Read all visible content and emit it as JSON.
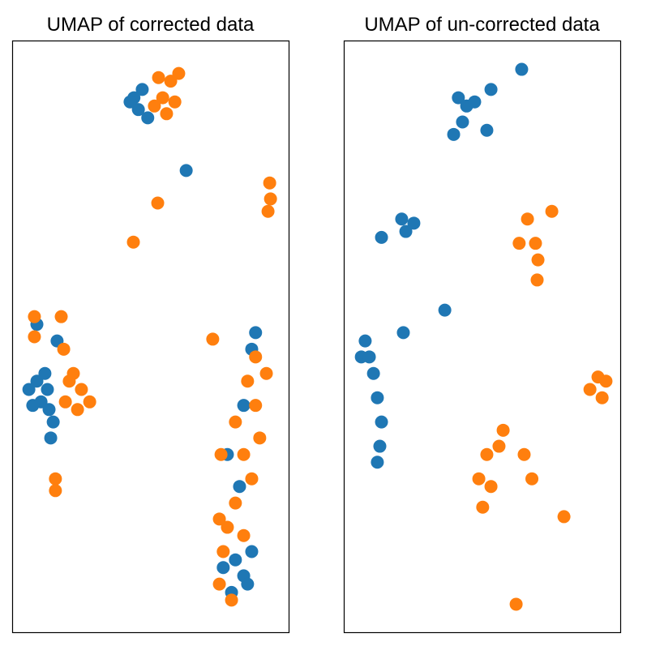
{
  "chart_data": [
    {
      "type": "scatter",
      "title": "UMAP of corrected data",
      "xlim": [
        0,
        100
      ],
      "ylim": [
        0,
        100
      ],
      "series": [
        {
          "color": "#1f77b4",
          "x": [
            43.9,
            46.9,
            45.5,
            48.9,
            42.5,
            62.8,
            5.9,
            8.8,
            10.3,
            7.3,
            12.6,
            13.2,
            11.7,
            14.7,
            13.8,
            8.8,
            16.1,
            80.6,
            83.6,
            79.2,
            86.5,
            85.0,
            76.2,
            82.1,
            83.6,
            86.5,
            77.7,
            87.9
          ],
          "y": [
            90.4,
            91.8,
            88.4,
            87.0,
            89.7,
            78.1,
            41.1,
            42.5,
            39.0,
            38.4,
            41.1,
            37.7,
            43.8,
            35.6,
            32.9,
            52.1,
            49.3,
            12.3,
            9.6,
            6.8,
            13.7,
            8.2,
            11.0,
            24.7,
            38.4,
            47.9,
            30.1,
            50.7
          ]
        },
        {
          "color": "#ff7f0e",
          "x": [
            52.8,
            57.2,
            60.1,
            54.3,
            58.7,
            55.7,
            51.3,
            52.5,
            43.7,
            93.0,
            93.3,
            92.4,
            20.5,
            24.9,
            23.5,
            27.9,
            19.1,
            22.0,
            7.9,
            7.9,
            17.6,
            18.5,
            15.5,
            15.5,
            74.8,
            77.7,
            76.2,
            74.8,
            80.6,
            86.5,
            83.6,
            89.4,
            87.9,
            91.8,
            85.0,
            75.4,
            80.6,
            87.9,
            72.4,
            79.2,
            83.6
          ],
          "y": [
            93.8,
            93.2,
            94.5,
            90.4,
            89.7,
            87.7,
            89.0,
            72.6,
            66.0,
            76.0,
            73.3,
            71.2,
            42.5,
            41.1,
            37.7,
            39.0,
            39.0,
            43.8,
            53.4,
            50.0,
            53.4,
            47.9,
            26.0,
            24.0,
            19.2,
            17.8,
            13.7,
            8.2,
            21.9,
            26.0,
            30.1,
            32.9,
            38.4,
            43.8,
            42.5,
            30.1,
            35.6,
            46.6,
            49.6,
            5.5,
            16.4
          ]
        }
      ]
    },
    {
      "type": "scatter",
      "title": "UMAP of un-corrected data",
      "xlim": [
        0,
        100
      ],
      "ylim": [
        0,
        100
      ],
      "series": [
        {
          "color": "#1f77b4",
          "x": [
            41.3,
            44.3,
            42.8,
            47.2,
            39.6,
            53.1,
            51.6,
            64.2,
            20.8,
            25.2,
            22.3,
            13.5,
            36.4,
            21.4,
            7.6,
            6.2,
            10.6,
            12.0,
            13.5,
            12.9,
            12.0,
            9.1
          ],
          "y": [
            90.4,
            89.0,
            86.3,
            89.7,
            84.2,
            91.8,
            84.9,
            95.2,
            69.9,
            69.2,
            67.8,
            66.8,
            54.5,
            50.7,
            49.3,
            46.6,
            43.8,
            39.7,
            35.6,
            31.5,
            28.8,
            46.6
          ]
        },
        {
          "color": "#ff7f0e",
          "x": [
            75.1,
            66.3,
            69.2,
            63.3,
            70.1,
            69.8,
            91.8,
            94.7,
            88.9,
            93.3,
            51.6,
            56.0,
            48.7,
            53.1,
            50.1,
            57.5,
            65.1,
            67.9,
            79.5,
            62.2
          ],
          "y": [
            71.2,
            69.9,
            65.8,
            65.8,
            63.0,
            59.6,
            43.2,
            42.5,
            41.1,
            39.7,
            30.1,
            31.5,
            26.0,
            24.7,
            21.2,
            34.2,
            30.1,
            26.0,
            19.6,
            4.8
          ]
        }
      ]
    }
  ]
}
